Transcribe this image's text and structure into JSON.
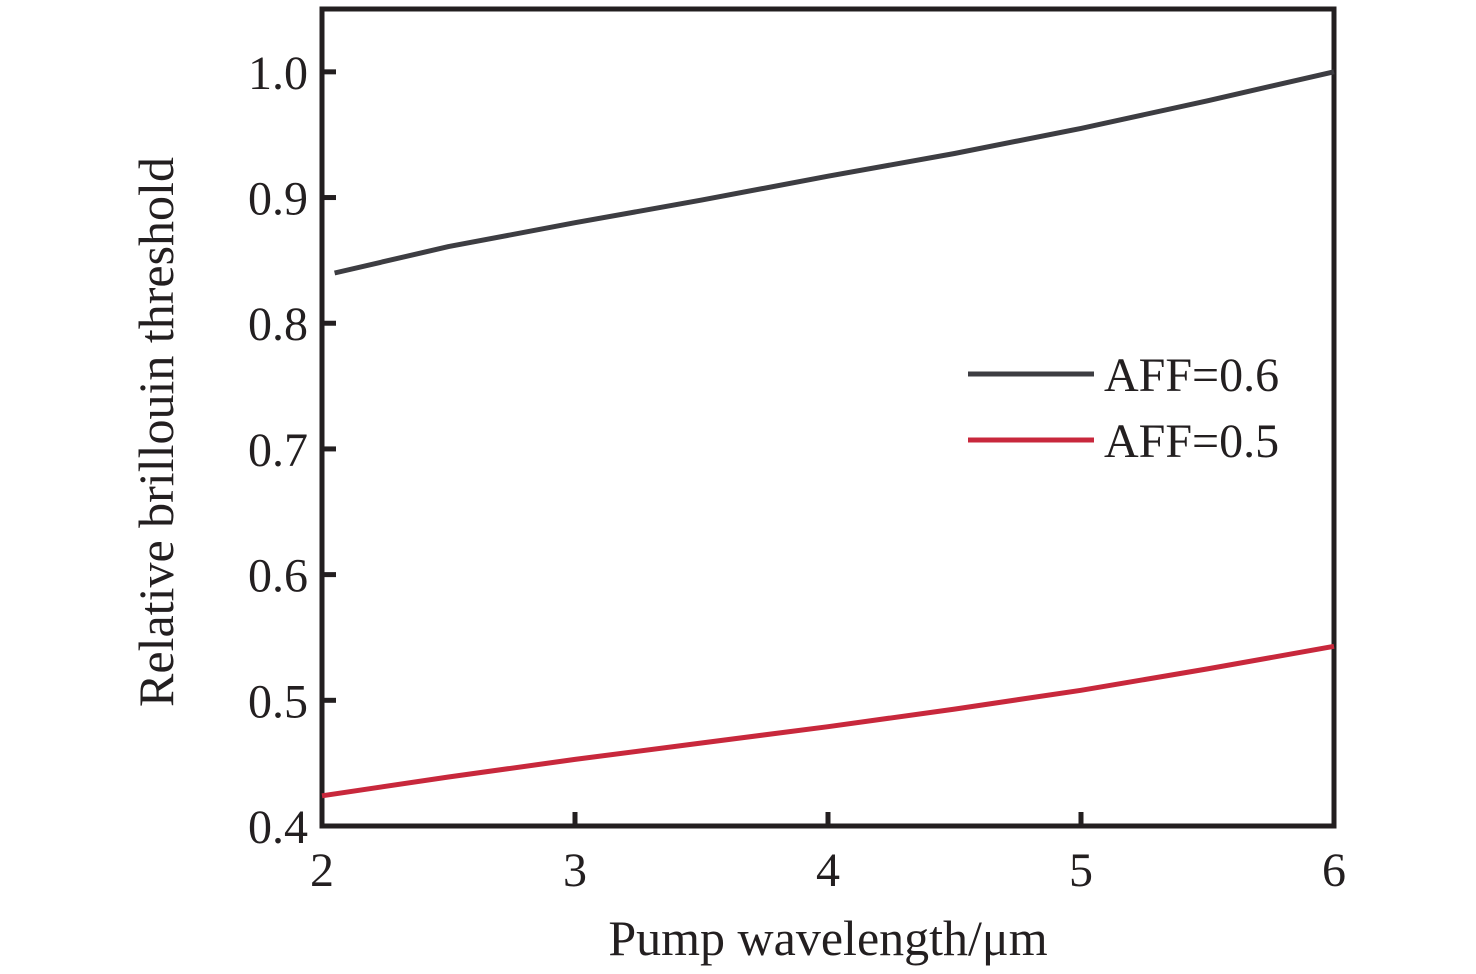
{
  "chart_data": {
    "type": "line",
    "title": "",
    "xlabel": "Pump wavelength/μm",
    "ylabel": "Relative brillouin threshold",
    "xlim": [
      2,
      6
    ],
    "ylim": [
      0.4,
      1.05
    ],
    "xticks": [
      2,
      3,
      4,
      5,
      6
    ],
    "xtick_labels": [
      "2",
      "3",
      "4",
      "5",
      "6"
    ],
    "yticks": [
      0.4,
      0.5,
      0.6,
      0.7,
      0.8,
      0.9,
      1.0
    ],
    "ytick_labels": [
      "0.4",
      "0.5",
      "0.6",
      "0.7",
      "0.8",
      "0.9",
      "1.0"
    ],
    "grid": false,
    "legend_position": "right-middle",
    "series": [
      {
        "name": "AFF=0.6",
        "color": "#3d3d42",
        "x": [
          2.05,
          2.5,
          3.0,
          3.5,
          4.0,
          4.5,
          5.0,
          5.5,
          6.0
        ],
        "y": [
          0.84,
          0.861,
          0.88,
          0.898,
          0.917,
          0.935,
          0.955,
          0.977,
          1.0
        ]
      },
      {
        "name": "AFF=0.5",
        "color": "#c8283c",
        "x": [
          2.0,
          2.5,
          3.0,
          3.5,
          4.0,
          4.5,
          5.0,
          5.5,
          6.0
        ],
        "y": [
          0.424,
          0.439,
          0.453,
          0.466,
          0.479,
          0.493,
          0.508,
          0.525,
          0.543
        ]
      }
    ]
  }
}
